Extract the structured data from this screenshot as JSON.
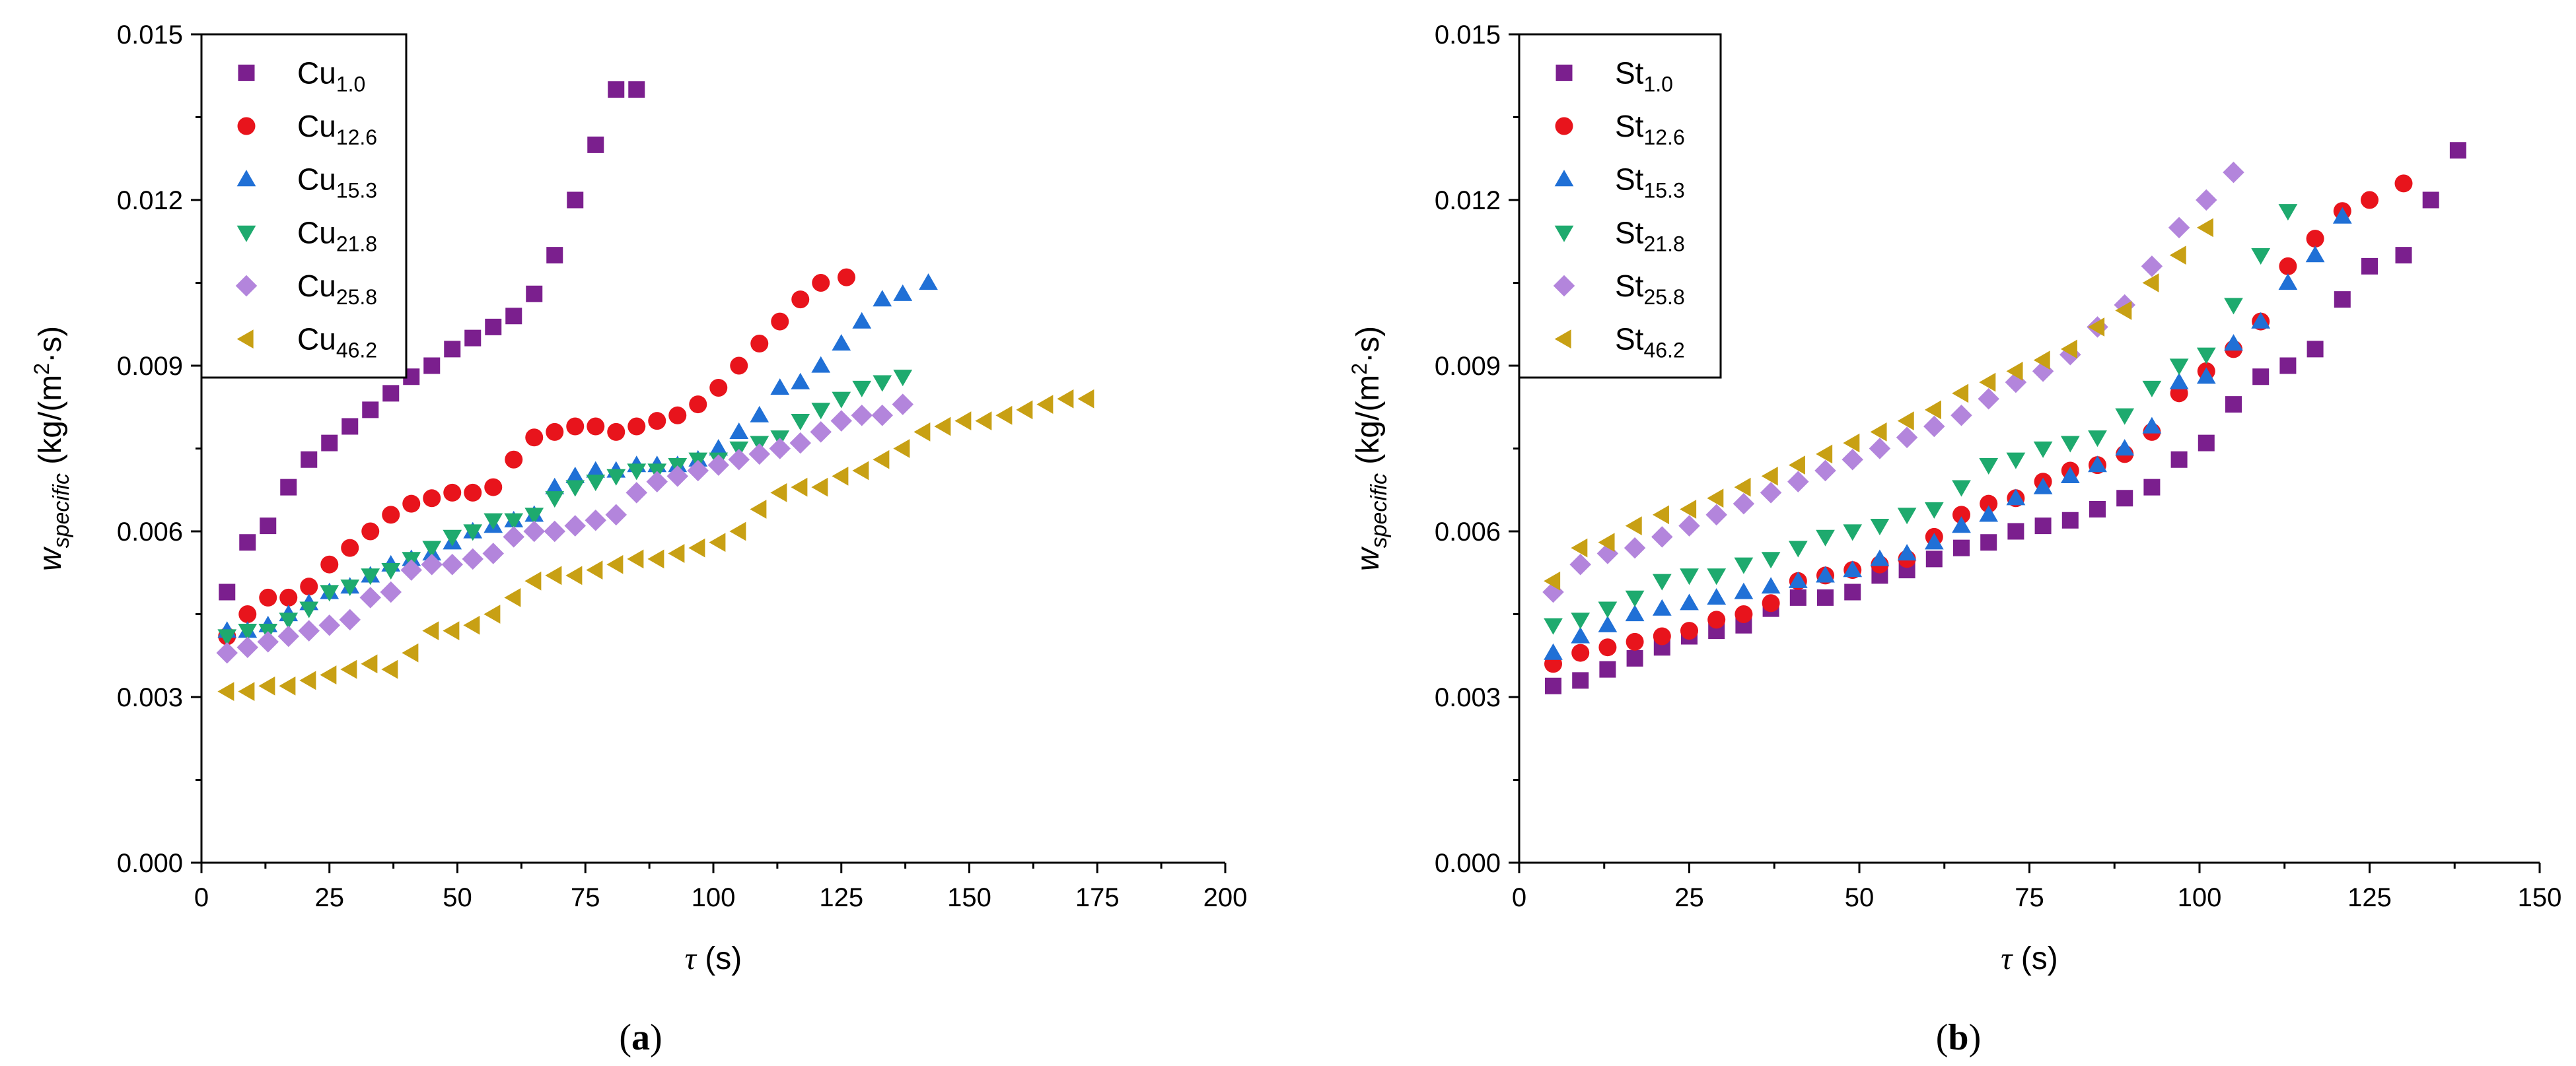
{
  "chart_data": [
    {
      "type": "scatter",
      "panel_label": "a",
      "xlabel": {
        "symbol": "τ",
        "unit": " (s)"
      },
      "ylabel": {
        "symbol": "w",
        "subscript": "specific",
        "unit_pre": " (kg/(m",
        "unit_sup": "2",
        "unit_post": "·s)"
      },
      "xlim": [
        0,
        200
      ],
      "ylim": [
        0,
        0.015
      ],
      "xticks": [
        "0",
        "25",
        "50",
        "75",
        "100",
        "125",
        "150",
        "175",
        "200"
      ],
      "yticks": [
        "0.000",
        "0.003",
        "0.006",
        "0.009",
        "0.012",
        "0.015"
      ],
      "grid": false,
      "legend_position": "top-left",
      "series": [
        {
          "name": "Cu",
          "subscript": "1.0",
          "marker": "square",
          "color": "#7B1F8E",
          "x": [
            5,
            9,
            13,
            17,
            21,
            25,
            29,
            33,
            37,
            41,
            45,
            49,
            53,
            57,
            61,
            65,
            69,
            73,
            77,
            81,
            85
          ],
          "y": [
            0.0049,
            0.0058,
            0.0061,
            0.0068,
            0.0073,
            0.0076,
            0.0079,
            0.0082,
            0.0085,
            0.0088,
            0.009,
            0.0093,
            0.0095,
            0.0097,
            0.0099,
            0.0103,
            0.011,
            0.012,
            0.013,
            0.014,
            0.014
          ]
        },
        {
          "name": "Cu",
          "subscript": "12.6",
          "marker": "circle",
          "color": "#E8141C",
          "x": [
            5,
            9,
            13,
            17,
            21,
            25,
            29,
            33,
            37,
            41,
            45,
            49,
            53,
            57,
            61,
            65,
            69,
            73,
            77,
            81,
            85,
            89,
            93,
            97,
            101,
            105,
            109,
            113,
            117,
            121,
            126
          ],
          "y": [
            0.0041,
            0.0045,
            0.0048,
            0.0048,
            0.005,
            0.0054,
            0.0057,
            0.006,
            0.0063,
            0.0065,
            0.0066,
            0.0067,
            0.0067,
            0.0068,
            0.0073,
            0.0077,
            0.0078,
            0.0079,
            0.0079,
            0.0078,
            0.0079,
            0.008,
            0.0081,
            0.0083,
            0.0086,
            0.009,
            0.0094,
            0.0098,
            0.0102,
            0.0105,
            0.0106
          ]
        },
        {
          "name": "Cu",
          "subscript": "15.3",
          "marker": "triangle-up",
          "color": "#2070D6",
          "x": [
            5,
            9,
            13,
            17,
            21,
            25,
            29,
            33,
            37,
            41,
            45,
            49,
            53,
            57,
            61,
            65,
            69,
            73,
            77,
            81,
            85,
            89,
            93,
            97,
            101,
            105,
            109,
            113,
            117,
            121,
            125,
            129,
            133,
            137,
            142
          ],
          "y": [
            0.0042,
            0.0042,
            0.0043,
            0.0045,
            0.0047,
            0.0049,
            0.005,
            0.0052,
            0.0054,
            0.0055,
            0.0056,
            0.0058,
            0.006,
            0.0061,
            0.0062,
            0.0063,
            0.0068,
            0.007,
            0.0071,
            0.0071,
            0.0072,
            0.0072,
            0.0072,
            0.0073,
            0.0075,
            0.0078,
            0.0081,
            0.0086,
            0.0087,
            0.009,
            0.0094,
            0.0098,
            0.0102,
            0.0103,
            0.0105
          ]
        },
        {
          "name": "Cu",
          "subscript": "21.8",
          "marker": "triangle-down",
          "color": "#1EAA6E",
          "x": [
            5,
            9,
            13,
            17,
            21,
            25,
            29,
            33,
            37,
            41,
            45,
            49,
            53,
            57,
            61,
            65,
            69,
            73,
            77,
            81,
            85,
            89,
            93,
            97,
            101,
            105,
            109,
            113,
            117,
            121,
            125,
            129,
            133,
            137
          ],
          "y": [
            0.0041,
            0.0042,
            0.0042,
            0.0044,
            0.0046,
            0.0049,
            0.005,
            0.0052,
            0.0053,
            0.0055,
            0.0057,
            0.0059,
            0.006,
            0.0062,
            0.0062,
            0.0063,
            0.0066,
            0.0068,
            0.0069,
            0.007,
            0.0071,
            0.0071,
            0.0072,
            0.0073,
            0.0073,
            0.0075,
            0.0076,
            0.0077,
            0.008,
            0.0082,
            0.0084,
            0.0086,
            0.0087,
            0.0088
          ]
        },
        {
          "name": "Cu",
          "subscript": "25.8",
          "marker": "diamond",
          "color": "#B385DC",
          "x": [
            5,
            9,
            13,
            17,
            21,
            25,
            29,
            33,
            37,
            41,
            45,
            49,
            53,
            57,
            61,
            65,
            69,
            73,
            77,
            81,
            85,
            89,
            93,
            97,
            101,
            105,
            109,
            113,
            117,
            121,
            125,
            129,
            133,
            137
          ],
          "y": [
            0.0038,
            0.0039,
            0.004,
            0.0041,
            0.0042,
            0.0043,
            0.0044,
            0.0048,
            0.0049,
            0.0053,
            0.0054,
            0.0054,
            0.0055,
            0.0056,
            0.0059,
            0.006,
            0.006,
            0.0061,
            0.0062,
            0.0063,
            0.0067,
            0.0069,
            0.007,
            0.0071,
            0.0072,
            0.0073,
            0.0074,
            0.0075,
            0.0076,
            0.0078,
            0.008,
            0.0081,
            0.0081,
            0.0083
          ]
        },
        {
          "name": "Cu",
          "subscript": "46.2",
          "marker": "triangle-left",
          "color": "#C8A014",
          "x": [
            5,
            9,
            13,
            17,
            21,
            25,
            29,
            33,
            37,
            41,
            45,
            49,
            53,
            57,
            61,
            65,
            69,
            73,
            77,
            81,
            85,
            89,
            93,
            97,
            101,
            105,
            109,
            113,
            117,
            121,
            125,
            129,
            133,
            137,
            141,
            145,
            149,
            153,
            157,
            161,
            165,
            169,
            173
          ],
          "y": [
            0.0031,
            0.0031,
            0.0032,
            0.0032,
            0.0033,
            0.0034,
            0.0035,
            0.0036,
            0.0035,
            0.0038,
            0.0042,
            0.0042,
            0.0043,
            0.0045,
            0.0048,
            0.0051,
            0.0052,
            0.0052,
            0.0053,
            0.0054,
            0.0055,
            0.0055,
            0.0056,
            0.0057,
            0.0058,
            0.006,
            0.0064,
            0.0067,
            0.0068,
            0.0068,
            0.007,
            0.0071,
            0.0073,
            0.0075,
            0.0078,
            0.0079,
            0.008,
            0.008,
            0.0081,
            0.0082,
            0.0083,
            0.0084,
            0.0084
          ]
        }
      ]
    },
    {
      "type": "scatter",
      "panel_label": "b",
      "xlabel": {
        "symbol": "τ",
        "unit": " (s)"
      },
      "ylabel": {
        "symbol": "w",
        "subscript": "specific",
        "unit_pre": " (kg/(m",
        "unit_sup": "2",
        "unit_post": "·s)"
      },
      "xlim": [
        0,
        150
      ],
      "ylim": [
        0,
        0.015
      ],
      "xticks": [
        "0",
        "25",
        "50",
        "75",
        "100",
        "125",
        "150"
      ],
      "yticks": [
        "0.000",
        "0.003",
        "0.006",
        "0.009",
        "0.012",
        "0.015"
      ],
      "grid": false,
      "legend_position": "top-left",
      "series": [
        {
          "name": "St",
          "subscript": "1.0",
          "marker": "square",
          "color": "#7B1F8E",
          "x": [
            5,
            9,
            13,
            17,
            21,
            25,
            29,
            33,
            37,
            41,
            45,
            49,
            53,
            57,
            61,
            65,
            69,
            73,
            77,
            81,
            85,
            89,
            93,
            97,
            101,
            105,
            109,
            113,
            117,
            121,
            125,
            130,
            134,
            138
          ],
          "y": [
            0.0032,
            0.0033,
            0.0035,
            0.0037,
            0.0039,
            0.0041,
            0.0042,
            0.0043,
            0.0046,
            0.0048,
            0.0048,
            0.0049,
            0.0052,
            0.0053,
            0.0055,
            0.0057,
            0.0058,
            0.006,
            0.0061,
            0.0062,
            0.0064,
            0.0066,
            0.0068,
            0.0073,
            0.0076,
            0.0083,
            0.0088,
            0.009,
            0.0093,
            0.0102,
            0.0108,
            0.011,
            0.012,
            0.0129
          ]
        },
        {
          "name": "St",
          "subscript": "12.6",
          "marker": "circle",
          "color": "#E8141C",
          "x": [
            5,
            9,
            13,
            17,
            21,
            25,
            29,
            33,
            37,
            41,
            45,
            49,
            53,
            57,
            61,
            65,
            69,
            73,
            77,
            81,
            85,
            89,
            93,
            97,
            101,
            105,
            109,
            113,
            117,
            121,
            125,
            130
          ],
          "y": [
            0.0036,
            0.0038,
            0.0039,
            0.004,
            0.0041,
            0.0042,
            0.0044,
            0.0045,
            0.0047,
            0.0051,
            0.0052,
            0.0053,
            0.0054,
            0.0055,
            0.0059,
            0.0063,
            0.0065,
            0.0066,
            0.0069,
            0.0071,
            0.0072,
            0.0074,
            0.0078,
            0.0085,
            0.0089,
            0.0093,
            0.0098,
            0.0108,
            0.0113,
            0.0118,
            0.012,
            0.0123
          ]
        },
        {
          "name": "St",
          "subscript": "15.3",
          "marker": "triangle-up",
          "color": "#2070D6",
          "x": [
            5,
            9,
            13,
            17,
            21,
            25,
            29,
            33,
            37,
            41,
            45,
            49,
            53,
            57,
            61,
            65,
            69,
            73,
            77,
            81,
            85,
            89,
            93,
            97,
            101,
            105,
            109,
            113,
            117,
            121
          ],
          "y": [
            0.0038,
            0.0041,
            0.0043,
            0.0045,
            0.0046,
            0.0047,
            0.0048,
            0.0049,
            0.005,
            0.0051,
            0.0052,
            0.0053,
            0.0055,
            0.0056,
            0.0058,
            0.0061,
            0.0063,
            0.0066,
            0.0068,
            0.007,
            0.0072,
            0.0075,
            0.0079,
            0.0087,
            0.0088,
            0.0094,
            0.0098,
            0.0105,
            0.011,
            0.0117
          ]
        },
        {
          "name": "St",
          "subscript": "21.8",
          "marker": "triangle-down",
          "color": "#1EAA6E",
          "x": [
            5,
            9,
            13,
            17,
            21,
            25,
            29,
            33,
            37,
            41,
            45,
            49,
            53,
            57,
            61,
            65,
            69,
            73,
            77,
            81,
            85,
            89,
            93,
            97,
            101,
            105,
            109,
            113
          ],
          "y": [
            0.0043,
            0.0044,
            0.0046,
            0.0048,
            0.0051,
            0.0052,
            0.0052,
            0.0054,
            0.0055,
            0.0057,
            0.0059,
            0.006,
            0.0061,
            0.0063,
            0.0064,
            0.0068,
            0.0072,
            0.0073,
            0.0075,
            0.0076,
            0.0077,
            0.0081,
            0.0086,
            0.009,
            0.0092,
            0.0101,
            0.011,
            0.0118
          ]
        },
        {
          "name": "St",
          "subscript": "25.8",
          "marker": "diamond",
          "color": "#B385DC",
          "x": [
            5,
            9,
            13,
            17,
            21,
            25,
            29,
            33,
            37,
            41,
            45,
            49,
            53,
            57,
            61,
            65,
            69,
            73,
            77,
            81,
            85,
            89,
            93,
            97,
            101,
            105
          ],
          "y": [
            0.0049,
            0.0054,
            0.0056,
            0.0057,
            0.0059,
            0.0061,
            0.0063,
            0.0065,
            0.0067,
            0.0069,
            0.0071,
            0.0073,
            0.0075,
            0.0077,
            0.0079,
            0.0081,
            0.0084,
            0.0087,
            0.0089,
            0.0092,
            0.0097,
            0.0101,
            0.0108,
            0.0115,
            0.012,
            0.0125
          ]
        },
        {
          "name": "St",
          "subscript": "46.2",
          "marker": "triangle-left",
          "color": "#C8A014",
          "x": [
            5,
            9,
            13,
            17,
            21,
            25,
            29,
            33,
            37,
            41,
            45,
            49,
            53,
            57,
            61,
            65,
            69,
            73,
            77,
            81,
            85,
            89,
            93,
            97,
            101
          ],
          "y": [
            0.0051,
            0.0057,
            0.0058,
            0.0061,
            0.0063,
            0.0064,
            0.0066,
            0.0068,
            0.007,
            0.0072,
            0.0074,
            0.0076,
            0.0078,
            0.008,
            0.0082,
            0.0085,
            0.0087,
            0.0089,
            0.0091,
            0.0093,
            0.0097,
            0.01,
            0.0105,
            0.011,
            0.0115
          ]
        }
      ]
    }
  ]
}
